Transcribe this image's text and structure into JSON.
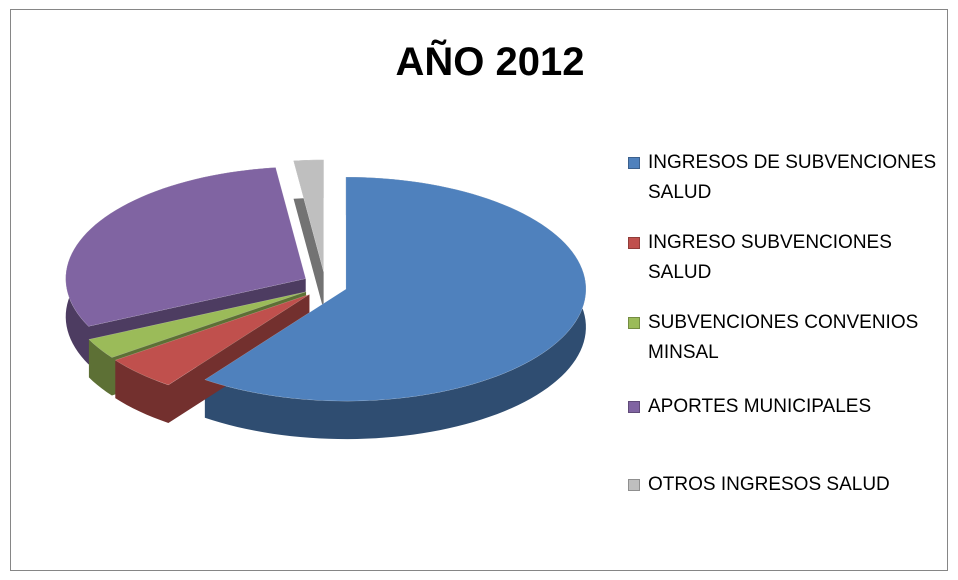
{
  "chart_data": {
    "type": "pie",
    "title": "AÑO 2012",
    "categories": [
      "INGRESOS DE SUBVENCIONES SALUD",
      "INGRESO SUBVENCIONES SALUD",
      "SUBVENCIONES CONVENIOS MINSAL",
      "APORTES MUNICIPALES",
      "OTROS INGRESOS SALUD"
    ],
    "values": [
      60,
      5,
      3,
      30,
      2
    ],
    "colors": [
      "#4f81bd",
      "#c0504d",
      "#9bbb59",
      "#8064a2",
      "#bfbfbf"
    ],
    "legend": "right"
  }
}
